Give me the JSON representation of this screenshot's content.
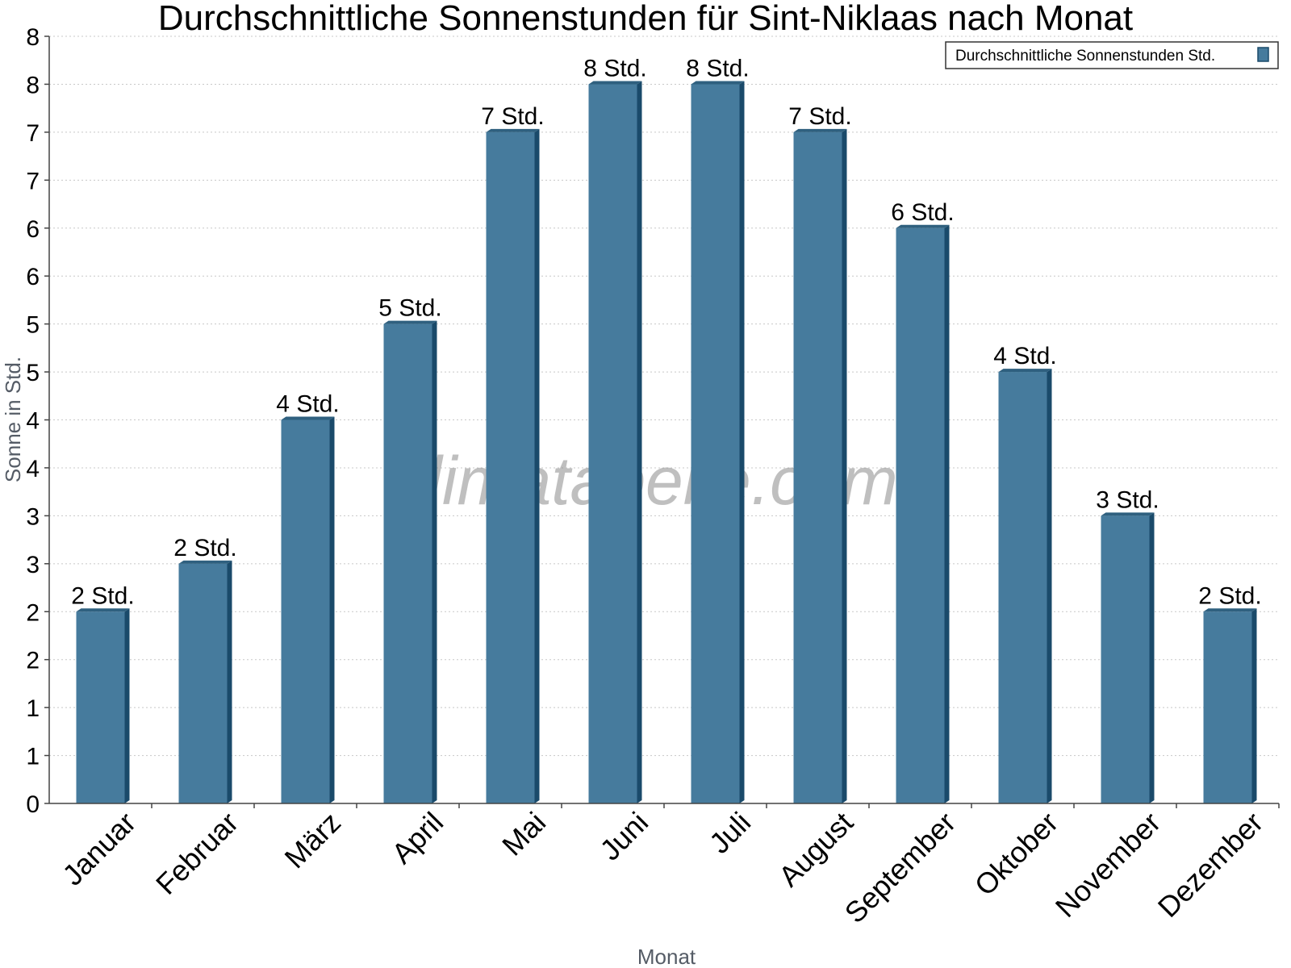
{
  "chart_data": {
    "type": "bar",
    "title": "Durchschnittliche Sonnenstunden für Sint-Niklaas nach Monat",
    "xlabel": "Monat",
    "ylabel": "Sonne in Std.",
    "categories": [
      "Januar",
      "Februar",
      "März",
      "April",
      "Mai",
      "Juni",
      "Juli",
      "August",
      "September",
      "Oktober",
      "November",
      "Dezember"
    ],
    "series": [
      {
        "name": "Durchschnittliche Sonnenstunden Std.",
        "values": [
          2,
          2.5,
          4,
          5,
          7,
          7.5,
          7.5,
          7,
          6,
          4.5,
          3,
          2
        ],
        "data_labels": [
          "2 Std.",
          "2 Std.",
          "4 Std.",
          "5 Std.",
          "7 Std.",
          "8 Std.",
          "8 Std.",
          "7 Std.",
          "6 Std.",
          "4 Std.",
          "3 Std.",
          "2 Std."
        ]
      }
    ],
    "y_ticks": [
      {
        "value": 0,
        "label": "0"
      },
      {
        "value": 0.5,
        "label": "1"
      },
      {
        "value": 1,
        "label": "1"
      },
      {
        "value": 1.5,
        "label": "2"
      },
      {
        "value": 2,
        "label": "2"
      },
      {
        "value": 2.5,
        "label": "3"
      },
      {
        "value": 3,
        "label": "3"
      },
      {
        "value": 3.5,
        "label": "4"
      },
      {
        "value": 4,
        "label": "4"
      },
      {
        "value": 4.5,
        "label": "5"
      },
      {
        "value": 5,
        "label": "5"
      },
      {
        "value": 5.5,
        "label": "6"
      },
      {
        "value": 6,
        "label": "6"
      },
      {
        "value": 6.5,
        "label": "7"
      },
      {
        "value": 7,
        "label": "7"
      },
      {
        "value": 7.5,
        "label": "8"
      },
      {
        "value": 8,
        "label": "8"
      }
    ],
    "ylim": [
      0,
      8
    ],
    "grid": true,
    "legend_position": "top-right",
    "colors": {
      "bar": "#467b9d",
      "bar_side": "#1a4a6a",
      "bar_top": "#2f607f"
    },
    "watermark": "klimatabelle.com"
  }
}
